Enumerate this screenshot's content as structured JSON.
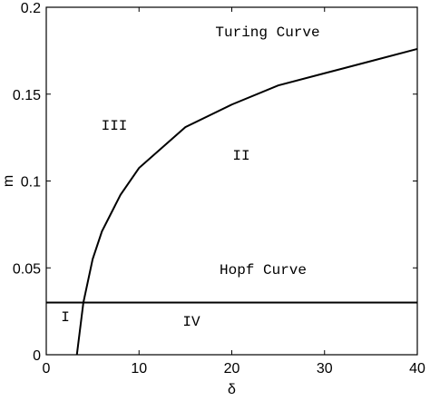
{
  "chart_data": {
    "type": "line",
    "x_label": "δ",
    "y_label": "m",
    "xlim": [
      0,
      40
    ],
    "ylim": [
      0,
      0.2
    ],
    "xticks": [
      0,
      10,
      20,
      30,
      40
    ],
    "yticks": [
      0,
      0.05,
      0.1,
      0.15,
      0.2
    ],
    "grid": false,
    "series": [
      {
        "name": "Turing Curve",
        "color": "#000000",
        "x": [
          3.3,
          4,
          5,
          6,
          8,
          10,
          15,
          20,
          25,
          30,
          35,
          40
        ],
        "values": [
          0,
          0.03,
          0.055,
          0.071,
          0.092,
          0.1075,
          0.131,
          0.144,
          0.155,
          0.162,
          0.169,
          0.176
        ]
      },
      {
        "name": "Hopf Curve",
        "color": "#000000",
        "x": [
          0,
          40
        ],
        "values": [
          0.03,
          0.03
        ]
      }
    ],
    "annotations": [
      "III",
      "II",
      "I",
      "IV"
    ]
  }
}
